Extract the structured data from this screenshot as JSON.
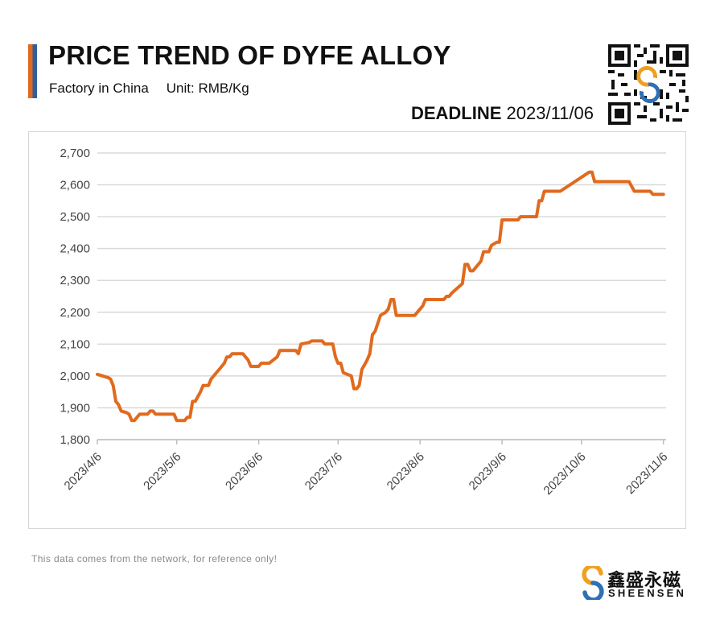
{
  "header": {
    "title": "PRICE TREND OF DYFE ALLOY",
    "factory": "Factory in China",
    "unit": "Unit: RMB/Kg",
    "deadline_label": "DEADLINE",
    "deadline_date": "2023/11/06"
  },
  "footer": {
    "disclaimer": "This data comes from the network, for reference only!",
    "brand_cn": "鑫盛永磁",
    "brand_en": "SHEENSEN"
  },
  "colors": {
    "line": "#e06a1e",
    "accent_orange": "#e06a1e",
    "accent_blue": "#2f5f9e",
    "grid": "#d9d9d9",
    "axis_text": "#444444"
  },
  "icons": {
    "qr": "qr-code-icon",
    "brand_logo": "sheensen-logo-icon"
  },
  "chart_data": {
    "type": "line",
    "title": "PRICE TREND OF DYFE ALLOY",
    "xlabel": "",
    "ylabel": "",
    "x_type": "date",
    "xlim": [
      "2023-04-06",
      "2023-11-07"
    ],
    "ylim": [
      1800,
      2700
    ],
    "ytick_step": 100,
    "y_ticks": [
      "1,800",
      "1,900",
      "2,000",
      "2,100",
      "2,200",
      "2,300",
      "2,400",
      "2,500",
      "2,600",
      "2,700"
    ],
    "x_ticks": [
      {
        "date": "2023-04-06",
        "label": "2023/4/6"
      },
      {
        "date": "2023-05-06",
        "label": "2023/5/6"
      },
      {
        "date": "2023-06-06",
        "label": "2023/6/6"
      },
      {
        "date": "2023-07-06",
        "label": "2023/7/6"
      },
      {
        "date": "2023-08-06",
        "label": "2023/8/6"
      },
      {
        "date": "2023-09-06",
        "label": "2023/9/6"
      },
      {
        "date": "2023-10-06",
        "label": "2023/10/6"
      },
      {
        "date": "2023-11-06",
        "label": "2023/11/6"
      }
    ],
    "grid": "horizontal",
    "legend": "none",
    "series": [
      {
        "points": [
          [
            "2023-04-06",
            2005
          ],
          [
            "2023-04-08",
            2000
          ],
          [
            "2023-04-10",
            1995
          ],
          [
            "2023-04-11",
            1990
          ],
          [
            "2023-04-12",
            1970
          ],
          [
            "2023-04-13",
            1920
          ],
          [
            "2023-04-14",
            1910
          ],
          [
            "2023-04-15",
            1890
          ],
          [
            "2023-04-17",
            1885
          ],
          [
            "2023-04-18",
            1880
          ],
          [
            "2023-04-19",
            1860
          ],
          [
            "2023-04-20",
            1860
          ],
          [
            "2023-04-22",
            1880
          ],
          [
            "2023-04-25",
            1880
          ],
          [
            "2023-04-26",
            1890
          ],
          [
            "2023-04-27",
            1890
          ],
          [
            "2023-04-28",
            1880
          ],
          [
            "2023-05-05",
            1880
          ],
          [
            "2023-05-06",
            1860
          ],
          [
            "2023-05-09",
            1860
          ],
          [
            "2023-05-10",
            1870
          ],
          [
            "2023-05-11",
            1870
          ],
          [
            "2023-05-12",
            1920
          ],
          [
            "2023-05-13",
            1920
          ],
          [
            "2023-05-15",
            1950
          ],
          [
            "2023-05-16",
            1970
          ],
          [
            "2023-05-18",
            1970
          ],
          [
            "2023-05-19",
            1990
          ],
          [
            "2023-05-22",
            2020
          ],
          [
            "2023-05-24",
            2040
          ],
          [
            "2023-05-25",
            2060
          ],
          [
            "2023-05-26",
            2060
          ],
          [
            "2023-05-27",
            2070
          ],
          [
            "2023-05-31",
            2070
          ],
          [
            "2023-06-01",
            2060
          ],
          [
            "2023-06-02",
            2050
          ],
          [
            "2023-06-03",
            2030
          ],
          [
            "2023-06-06",
            2030
          ],
          [
            "2023-06-07",
            2040
          ],
          [
            "2023-06-10",
            2040
          ],
          [
            "2023-06-13",
            2060
          ],
          [
            "2023-06-14",
            2080
          ],
          [
            "2023-06-20",
            2080
          ],
          [
            "2023-06-21",
            2070
          ],
          [
            "2023-06-22",
            2100
          ],
          [
            "2023-06-25",
            2105
          ],
          [
            "2023-06-26",
            2110
          ],
          [
            "2023-06-30",
            2110
          ],
          [
            "2023-07-01",
            2100
          ],
          [
            "2023-07-04",
            2100
          ],
          [
            "2023-07-05",
            2060
          ],
          [
            "2023-07-06",
            2040
          ],
          [
            "2023-07-07",
            2040
          ],
          [
            "2023-07-08",
            2010
          ],
          [
            "2023-07-11",
            2000
          ],
          [
            "2023-07-12",
            1960
          ],
          [
            "2023-07-13",
            1960
          ],
          [
            "2023-07-14",
            1970
          ],
          [
            "2023-07-15",
            2020
          ],
          [
            "2023-07-17",
            2050
          ],
          [
            "2023-07-18",
            2070
          ],
          [
            "2023-07-19",
            2130
          ],
          [
            "2023-07-20",
            2140
          ],
          [
            "2023-07-22",
            2190
          ],
          [
            "2023-07-24",
            2200
          ],
          [
            "2023-07-25",
            2210
          ],
          [
            "2023-07-26",
            2240
          ],
          [
            "2023-07-27",
            2240
          ],
          [
            "2023-07-28",
            2190
          ],
          [
            "2023-08-04",
            2190
          ],
          [
            "2023-08-06",
            2210
          ],
          [
            "2023-08-07",
            2220
          ],
          [
            "2023-08-08",
            2240
          ],
          [
            "2023-08-15",
            2240
          ],
          [
            "2023-08-16",
            2250
          ],
          [
            "2023-08-17",
            2250
          ],
          [
            "2023-08-18",
            2260
          ],
          [
            "2023-08-22",
            2290
          ],
          [
            "2023-08-23",
            2350
          ],
          [
            "2023-08-24",
            2350
          ],
          [
            "2023-08-25",
            2330
          ],
          [
            "2023-08-26",
            2330
          ],
          [
            "2023-08-29",
            2360
          ],
          [
            "2023-08-30",
            2390
          ],
          [
            "2023-09-01",
            2390
          ],
          [
            "2023-09-02",
            2410
          ],
          [
            "2023-09-04",
            2420
          ],
          [
            "2023-09-05",
            2420
          ],
          [
            "2023-09-06",
            2490
          ],
          [
            "2023-09-12",
            2490
          ],
          [
            "2023-09-13",
            2500
          ],
          [
            "2023-09-19",
            2500
          ],
          [
            "2023-09-20",
            2550
          ],
          [
            "2023-09-21",
            2550
          ],
          [
            "2023-09-22",
            2580
          ],
          [
            "2023-09-28",
            2580
          ],
          [
            "2023-10-09",
            2640
          ],
          [
            "2023-10-10",
            2640
          ],
          [
            "2023-10-11",
            2610
          ],
          [
            "2023-10-24",
            2610
          ],
          [
            "2023-10-26",
            2580
          ],
          [
            "2023-11-01",
            2580
          ],
          [
            "2023-11-02",
            2570
          ],
          [
            "2023-11-06",
            2570
          ]
        ]
      }
    ]
  }
}
